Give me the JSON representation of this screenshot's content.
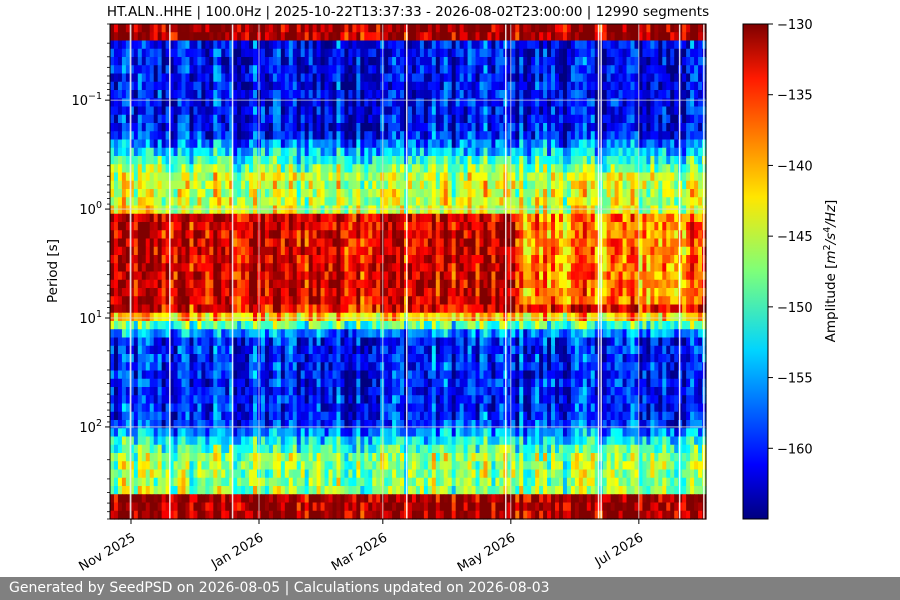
{
  "chart_data": {
    "type": "heatmap",
    "title": "HT.ALN..HHE | 100.0Hz | 2025-10-22T13:37:33 - 2026-08-02T23:00:00 | 12990 segments",
    "ylabel": "Period [s]",
    "y_scale": "log",
    "y_inverted": true,
    "ylim": [
      0.02,
      700
    ],
    "y_major_ticks": [
      0.1,
      1,
      10,
      100
    ],
    "y_tick_labels": [
      {
        "base": "10",
        "exp": "−1"
      },
      {
        "base": "10",
        "exp": "0"
      },
      {
        "base": "10",
        "exp": "1"
      },
      {
        "base": "10",
        "exp": "2"
      }
    ],
    "x_start": "2025-10-22",
    "x_end": "2026-08-02",
    "x_ticks": [
      {
        "date": "2025-11-01",
        "label": "Nov 2025"
      },
      {
        "date": "2026-01-01",
        "label": "Jan 2026"
      },
      {
        "date": "2026-03-01",
        "label": "Mar 2026"
      },
      {
        "date": "2026-05-01",
        "label": "May 2026"
      },
      {
        "date": "2026-07-01",
        "label": "Jul 2026"
      }
    ],
    "grid": true,
    "colormap": "jet",
    "colorbar": {
      "label": "Amplitude",
      "unit_parts": {
        "m": "m",
        "exp2": "2",
        "slash": "/",
        "s": "s",
        "exp4": "4",
        "hz": "/Hz"
      },
      "unit_bracket": "]",
      "range": [
        -165,
        -130
      ],
      "ticks": [
        -130,
        -135,
        -140,
        -145,
        -150,
        -155,
        -160
      ],
      "tick_labels": [
        "−130",
        "−135",
        "−140",
        "−145",
        "−150",
        "−155",
        "−160"
      ]
    },
    "period_band_levels_db": [
      {
        "period": [
          0.02,
          0.03
        ],
        "db": -131
      },
      {
        "period": [
          0.03,
          0.2
        ],
        "db": -161
      },
      {
        "period": [
          0.5,
          1.2
        ],
        "db": -145
      },
      {
        "period": [
          1.2,
          8
        ],
        "db": -133
      },
      {
        "period": [
          15,
          90
        ],
        "db": -160
      },
      {
        "period": [
          180,
          450
        ],
        "db": -147
      },
      {
        "period": [
          450,
          700
        ],
        "db": -131
      }
    ]
  },
  "footer": {
    "text": "Generated by SeedPSD on 2026-08-05 | Calculations updated on 2026-08-03"
  }
}
